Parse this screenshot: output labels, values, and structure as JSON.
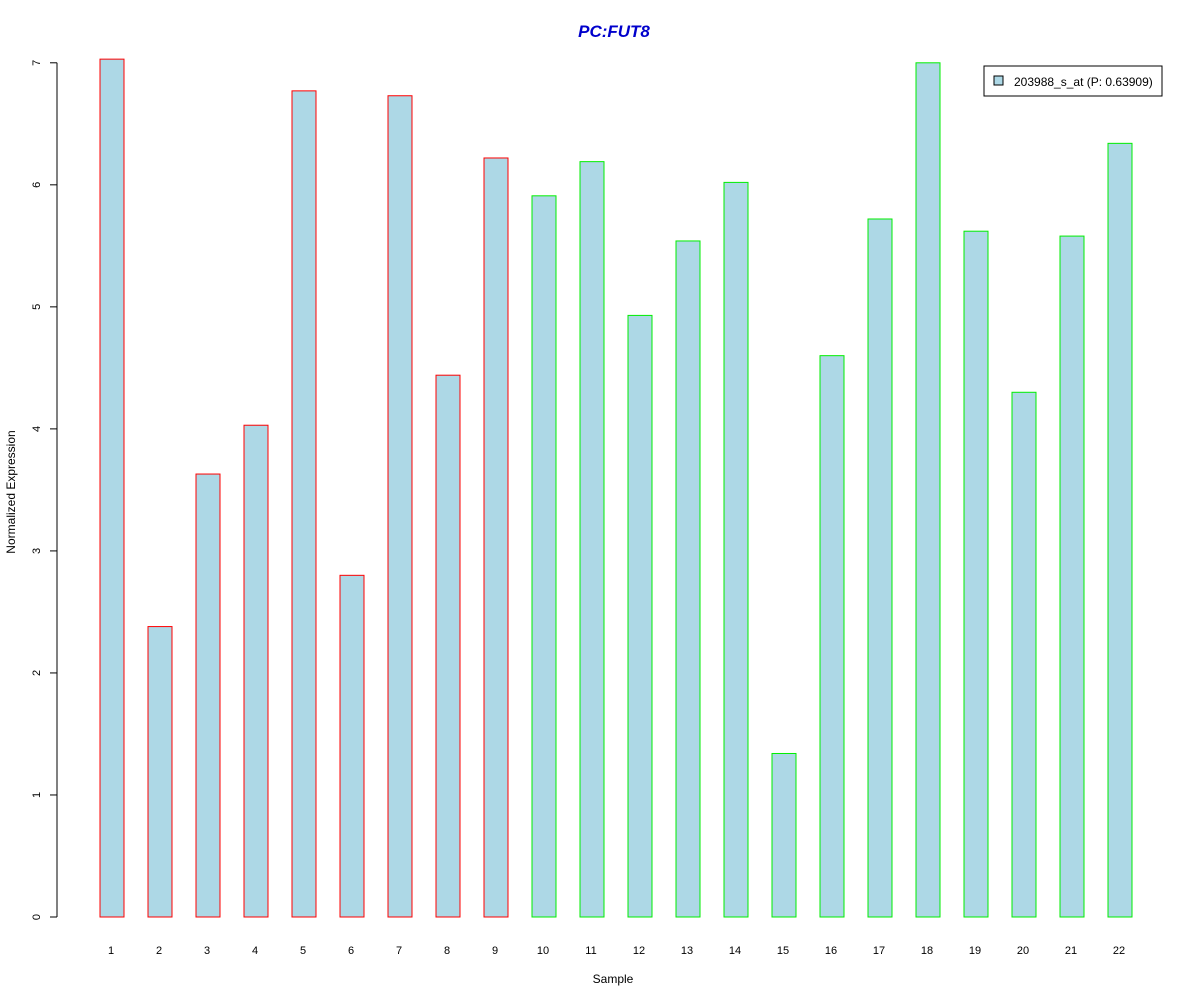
{
  "chart_data": {
    "type": "bar",
    "title": "PC:FUT8",
    "xlabel": "Sample",
    "ylabel": "Normalized Expression",
    "categories": [
      "1",
      "2",
      "3",
      "4",
      "5",
      "6",
      "7",
      "8",
      "9",
      "10",
      "11",
      "12",
      "13",
      "14",
      "15",
      "16",
      "17",
      "18",
      "19",
      "20",
      "21",
      "22"
    ],
    "series": [
      {
        "name": "203988_s_at (P: 0.63909)",
        "values": [
          7.03,
          2.38,
          3.63,
          4.03,
          6.77,
          2.8,
          6.73,
          4.44,
          6.22,
          5.91,
          6.19,
          4.93,
          5.54,
          6.02,
          1.34,
          4.6,
          5.72,
          7.0,
          5.62,
          4.3,
          5.58,
          6.34
        ]
      }
    ],
    "group_of_bar": [
      "a",
      "a",
      "a",
      "a",
      "a",
      "a",
      "a",
      "a",
      "a",
      "b",
      "b",
      "b",
      "b",
      "b",
      "b",
      "b",
      "b",
      "b",
      "b",
      "b",
      "b",
      "b"
    ],
    "ylim": [
      0,
      7
    ],
    "yticks": [
      0,
      1,
      2,
      3,
      4,
      5,
      6,
      7
    ],
    "grid": false,
    "legend_position": "top-right",
    "colors": {
      "title": "#0000cc",
      "bar_fill": "#add8e6",
      "group_a_border": "#ff0000",
      "group_b_border": "#00ee00",
      "axis": "#000000"
    }
  }
}
